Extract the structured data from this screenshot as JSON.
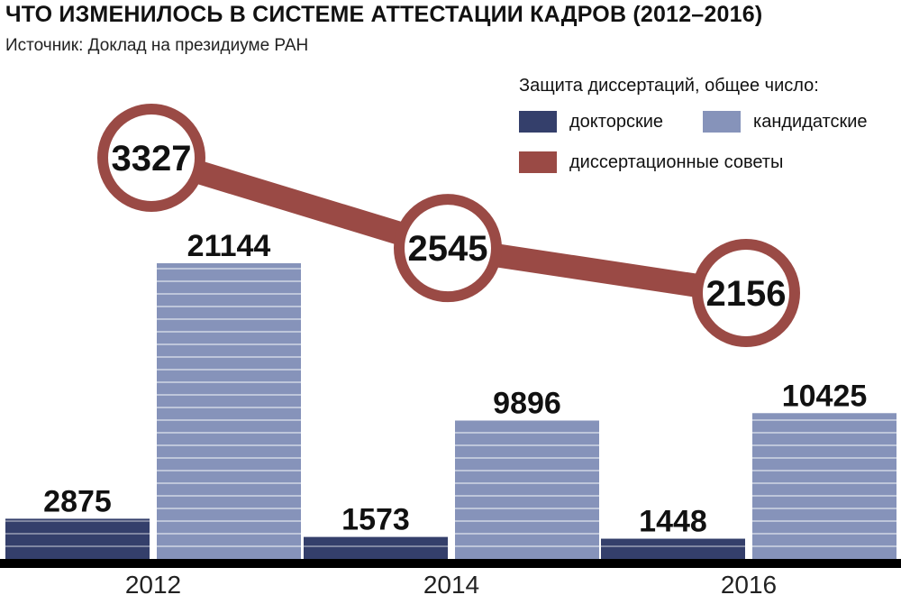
{
  "title": "ЧТО ИЗМЕНИЛОСЬ В СИСТЕМЕ АТТЕСТАЦИИ КАДРОВ (2012–2016)",
  "source": "Источник: Доклад на президиуме РАН",
  "legend": {
    "title": "Защита диссертаций, общее число:",
    "doctoral": "докторские",
    "candidate": "кандидатские",
    "councils": "диссертационные советы"
  },
  "colors": {
    "doctoral": "#343f6b",
    "candidate": "#8693ba",
    "councils": "#9a4a45",
    "baseline": "#000000"
  },
  "chart_data": {
    "type": "bar",
    "categories": [
      "2012",
      "2014",
      "2016"
    ],
    "series": [
      {
        "name": "докторские",
        "values": [
          2875,
          1573,
          1448
        ]
      },
      {
        "name": "кандидатские",
        "values": [
          21144,
          9896,
          10425
        ]
      }
    ],
    "line_series": {
      "name": "диссертационные советы",
      "values": [
        3327,
        2545,
        2156
      ]
    },
    "ylim": [
      0,
      22000
    ]
  }
}
